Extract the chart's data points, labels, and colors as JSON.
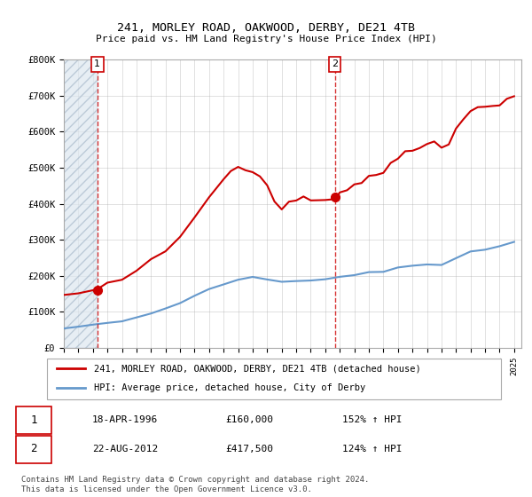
{
  "title": "241, MORLEY ROAD, OAKWOOD, DERBY, DE21 4TB",
  "subtitle": "Price paid vs. HM Land Registry's House Price Index (HPI)",
  "xlabel": "",
  "ylabel": "",
  "ylim": [
    0,
    800000
  ],
  "yticks": [
    0,
    100000,
    200000,
    300000,
    400000,
    500000,
    600000,
    700000,
    800000
  ],
  "ytick_labels": [
    "£0",
    "£100K",
    "£200K",
    "£300K",
    "£400K",
    "£500K",
    "£600K",
    "£700K",
    "£800K"
  ],
  "xmin": 1994.0,
  "xmax": 2025.5,
  "red_color": "#cc0000",
  "blue_color": "#6699cc",
  "hatch_color": "#ccddee",
  "grid_color": "#aaaaaa",
  "point1_x": 1996.3,
  "point1_y": 160000,
  "point2_x": 2012.65,
  "point2_y": 417500,
  "legend_label_red": "241, MORLEY ROAD, OAKWOOD, DERBY, DE21 4TB (detached house)",
  "legend_label_blue": "HPI: Average price, detached house, City of Derby",
  "table_rows": [
    {
      "num": "1",
      "date": "18-APR-1996",
      "price": "£160,000",
      "hpi": "152% ↑ HPI"
    },
    {
      "num": "2",
      "date": "22-AUG-2012",
      "price": "£417,500",
      "hpi": "124% ↑ HPI"
    }
  ],
  "footnote": "Contains HM Land Registry data © Crown copyright and database right 2024.\nThis data is licensed under the Open Government Licence v3.0.",
  "background_color": "#f0f4f8"
}
